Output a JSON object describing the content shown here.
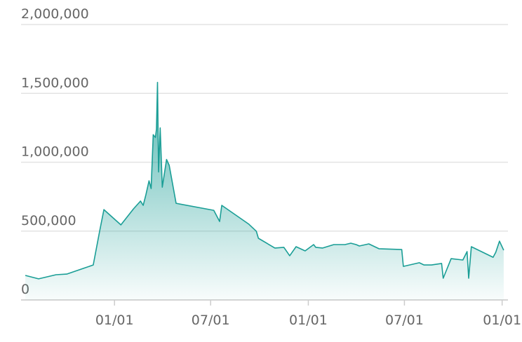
{
  "chart_data": {
    "type": "area",
    "color": "#1a9e96",
    "grid": true,
    "x": [
      -168,
      -143,
      -110,
      -90,
      -40,
      -28,
      -20,
      12,
      36,
      49,
      54,
      59,
      65,
      69,
      73,
      77,
      79,
      81,
      83,
      86,
      90,
      98,
      103,
      116,
      187,
      198,
      202,
      253,
      267,
      271,
      302,
      319,
      330,
      342,
      359,
      375,
      379,
      392,
      413,
      434,
      445,
      455,
      461,
      479,
      498,
      541,
      544,
      574,
      583,
      597,
      616,
      619,
      634,
      656,
      664,
      667,
      672,
      713,
      718,
      725,
      733
    ],
    "values": [
      178000,
      153000,
      183000,
      188000,
      254000,
      499000,
      656000,
      545000,
      662000,
      718000,
      687000,
      763000,
      865000,
      809000,
      1200000,
      1180000,
      1240000,
      1580000,
      930000,
      1250000,
      819000,
      1020000,
      977000,
      702000,
      651000,
      570000,
      687000,
      550000,
      499000,
      448000,
      377000,
      382000,
      321000,
      387000,
      356000,
      402000,
      382000,
      377000,
      402000,
      402000,
      412000,
      402000,
      392000,
      407000,
      372000,
      366000,
      244000,
      270000,
      254000,
      254000,
      265000,
      158000,
      300000,
      290000,
      351000,
      158000,
      387000,
      310000,
      346000,
      427000,
      361000
    ],
    "xlim": [
      -176,
      741
    ],
    "xticks": [
      {
        "value": 0,
        "label": "01/01"
      },
      {
        "value": 181,
        "label": "07/01"
      },
      {
        "value": 365,
        "label": "01/01"
      },
      {
        "value": 546,
        "label": "07/01"
      },
      {
        "value": 730,
        "label": "01/01"
      }
    ],
    "ylim": [
      0,
      2000000
    ],
    "yticks": [
      0,
      {
        "value": 500000,
        "label": "500,000"
      },
      {
        "value": 1000000,
        "label": "1,000,000"
      },
      {
        "value": 1500000,
        "label": "1,500,000"
      },
      {
        "value": 2000000,
        "label": "2,000,000"
      }
    ]
  }
}
